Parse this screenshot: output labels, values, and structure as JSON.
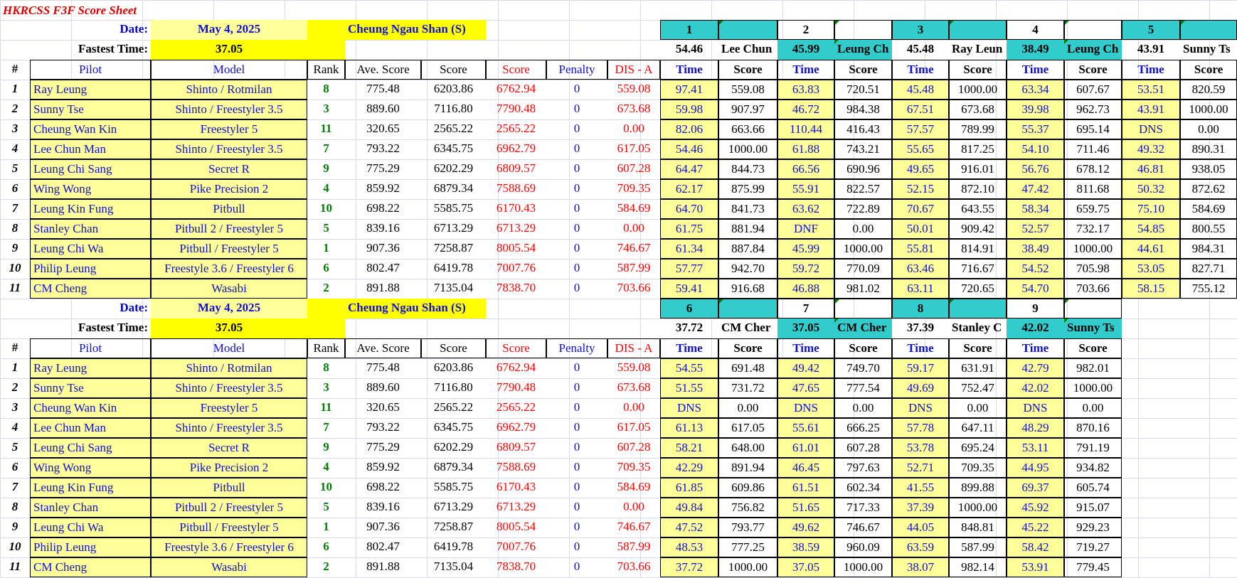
{
  "title": "HKRCSS F3F Score Sheet",
  "blocks": [
    {
      "date_label": "Date:",
      "date": "May 4, 2025",
      "site": "Cheung Ngau Shan (S)",
      "fastest_label": "Fastest Time:",
      "fastest": "37.05",
      "headers": [
        "#",
        "Pilot",
        "Model",
        "Rank",
        "Ave. Score",
        "Score",
        "Score",
        "Penalty",
        "DIS - A"
      ],
      "rounds": [
        {
          "n": "1",
          "best": "54.46",
          "pilot": "Lee Chun"
        },
        {
          "n": "2",
          "best": "45.99",
          "pilot": "Leung Ch"
        },
        {
          "n": "3",
          "best": "45.48",
          "pilot": "Ray Leun"
        },
        {
          "n": "4",
          "best": "38.49",
          "pilot": "Leung Ch"
        },
        {
          "n": "5",
          "best": "43.91",
          "pilot": "Sunny Ts"
        }
      ],
      "time_label": "Time",
      "score_label": "Score",
      "rows": [
        {
          "num": "1",
          "pilot": "Ray Leung",
          "model": "Shinto / Rotmilan",
          "rank": "8",
          "ave": "775.48",
          "score": "6203.86",
          "score2": "6762.94",
          "pen": "0",
          "dis": "559.08",
          "r": [
            [
              "97.41",
              "559.08"
            ],
            [
              "63.83",
              "720.51"
            ],
            [
              "45.48",
              "1000.00"
            ],
            [
              "63.34",
              "607.67"
            ],
            [
              "53.51",
              "820.59"
            ]
          ]
        },
        {
          "num": "2",
          "pilot": "Sunny Tse",
          "model": "Shinto / Freestyler 3.5",
          "rank": "3",
          "ave": "889.60",
          "score": "7116.80",
          "score2": "7790.48",
          "pen": "0",
          "dis": "673.68",
          "r": [
            [
              "59.98",
              "907.97"
            ],
            [
              "46.72",
              "984.38"
            ],
            [
              "67.51",
              "673.68"
            ],
            [
              "39.98",
              "962.73"
            ],
            [
              "43.91",
              "1000.00"
            ]
          ]
        },
        {
          "num": "3",
          "pilot": "Cheung Wan Kin",
          "model": "Freestyler 5",
          "rank": "11",
          "ave": "320.65",
          "score": "2565.22",
          "score2": "2565.22",
          "pen": "0",
          "dis": "0.00",
          "r": [
            [
              "82.06",
              "663.66"
            ],
            [
              "110.44",
              "416.43"
            ],
            [
              "57.57",
              "789.99"
            ],
            [
              "55.37",
              "695.14"
            ],
            [
              "DNS",
              "0.00"
            ]
          ]
        },
        {
          "num": "4",
          "pilot": "Lee Chun Man",
          "model": "Shinto / Freestyler 3.5",
          "rank": "7",
          "ave": "793.22",
          "score": "6345.75",
          "score2": "6962.79",
          "pen": "0",
          "dis": "617.05",
          "r": [
            [
              "54.46",
              "1000.00"
            ],
            [
              "61.88",
              "743.21"
            ],
            [
              "55.65",
              "817.25"
            ],
            [
              "54.10",
              "711.46"
            ],
            [
              "49.32",
              "890.31"
            ]
          ]
        },
        {
          "num": "5",
          "pilot": "Leung Chi Sang",
          "model": "Secret R",
          "rank": "9",
          "ave": "775.29",
          "score": "6202.29",
          "score2": "6809.57",
          "pen": "0",
          "dis": "607.28",
          "r": [
            [
              "64.47",
              "844.73"
            ],
            [
              "66.56",
              "690.96"
            ],
            [
              "49.65",
              "916.01"
            ],
            [
              "56.76",
              "678.12"
            ],
            [
              "46.81",
              "938.05"
            ]
          ]
        },
        {
          "num": "6",
          "pilot": "Wing Wong",
          "model": "Pike Precision 2",
          "rank": "4",
          "ave": "859.92",
          "score": "6879.34",
          "score2": "7588.69",
          "pen": "0",
          "dis": "709.35",
          "r": [
            [
              "62.17",
              "875.99"
            ],
            [
              "55.91",
              "822.57"
            ],
            [
              "52.15",
              "872.10"
            ],
            [
              "47.42",
              "811.68"
            ],
            [
              "50.32",
              "872.62"
            ]
          ]
        },
        {
          "num": "7",
          "pilot": "Leung Kin Fung",
          "model": "Pitbull",
          "rank": "10",
          "ave": "698.22",
          "score": "5585.75",
          "score2": "6170.43",
          "pen": "0",
          "dis": "584.69",
          "r": [
            [
              "64.70",
              "841.73"
            ],
            [
              "63.62",
              "722.89"
            ],
            [
              "70.67",
              "643.55"
            ],
            [
              "58.34",
              "659.75"
            ],
            [
              "75.10",
              "584.69"
            ]
          ]
        },
        {
          "num": "8",
          "pilot": "Stanley Chan",
          "model": "Pitbull 2 / Freestyler 5",
          "rank": "5",
          "ave": "839.16",
          "score": "6713.29",
          "score2": "6713.29",
          "pen": "0",
          "dis": "0.00",
          "r": [
            [
              "61.75",
              "881.94"
            ],
            [
              "DNF",
              "0.00"
            ],
            [
              "50.01",
              "909.42"
            ],
            [
              "52.57",
              "732.17"
            ],
            [
              "54.85",
              "800.55"
            ]
          ]
        },
        {
          "num": "9",
          "pilot": "Leung Chi Wa",
          "model": "Pitbull / Freestyler 5",
          "rank": "1",
          "ave": "907.36",
          "score": "7258.87",
          "score2": "8005.54",
          "pen": "0",
          "dis": "746.67",
          "r": [
            [
              "61.34",
              "887.84"
            ],
            [
              "45.99",
              "1000.00"
            ],
            [
              "55.81",
              "814.91"
            ],
            [
              "38.49",
              "1000.00"
            ],
            [
              "44.61",
              "984.31"
            ]
          ]
        },
        {
          "num": "10",
          "pilot": "Philip Leung",
          "model": "Freestyle 3.6 / Freestyler 6",
          "rank": "6",
          "ave": "802.47",
          "score": "6419.78",
          "score2": "7007.76",
          "pen": "0",
          "dis": "587.99",
          "r": [
            [
              "57.77",
              "942.70"
            ],
            [
              "59.72",
              "770.09"
            ],
            [
              "63.46",
              "716.67"
            ],
            [
              "54.52",
              "705.98"
            ],
            [
              "53.05",
              "827.71"
            ]
          ]
        },
        {
          "num": "11",
          "pilot": "CM Cheng",
          "model": "Wasabi",
          "rank": "2",
          "ave": "891.88",
          "score": "7135.04",
          "score2": "7838.70",
          "pen": "0",
          "dis": "703.66",
          "r": [
            [
              "59.41",
              "916.68"
            ],
            [
              "46.88",
              "981.02"
            ],
            [
              "63.11",
              "720.65"
            ],
            [
              "54.70",
              "703.66"
            ],
            [
              "58.15",
              "755.12"
            ]
          ]
        }
      ]
    },
    {
      "date_label": "Date:",
      "date": "May 4, 2025",
      "site": "Cheung Ngau Shan (S)",
      "fastest_label": "Fastest Time:",
      "fastest": "37.05",
      "headers": [
        "#",
        "Pilot",
        "Model",
        "Rank",
        "Ave. Score",
        "Score",
        "Score",
        "Penalty",
        "DIS - A"
      ],
      "rounds": [
        {
          "n": "6",
          "best": "37.72",
          "pilot": "CM Cher"
        },
        {
          "n": "7",
          "best": "37.05",
          "pilot": "CM Cher"
        },
        {
          "n": "8",
          "best": "37.39",
          "pilot": "Stanley C"
        },
        {
          "n": "9",
          "best": "42.02",
          "pilot": "Sunny Ts"
        }
      ],
      "time_label": "Time",
      "score_label": "Score",
      "rows": [
        {
          "num": "1",
          "pilot": "Ray Leung",
          "model": "Shinto / Rotmilan",
          "rank": "8",
          "ave": "775.48",
          "score": "6203.86",
          "score2": "6762.94",
          "pen": "0",
          "dis": "559.08",
          "r": [
            [
              "54.55",
              "691.48"
            ],
            [
              "49.42",
              "749.70"
            ],
            [
              "59.17",
              "631.91"
            ],
            [
              "42.79",
              "982.01"
            ]
          ]
        },
        {
          "num": "2",
          "pilot": "Sunny Tse",
          "model": "Shinto / Freestyler 3.5",
          "rank": "3",
          "ave": "889.60",
          "score": "7116.80",
          "score2": "7790.48",
          "pen": "0",
          "dis": "673.68",
          "r": [
            [
              "51.55",
              "731.72"
            ],
            [
              "47.65",
              "777.54"
            ],
            [
              "49.69",
              "752.47"
            ],
            [
              "42.02",
              "1000.00"
            ]
          ]
        },
        {
          "num": "3",
          "pilot": "Cheung Wan Kin",
          "model": "Freestyler 5",
          "rank": "11",
          "ave": "320.65",
          "score": "2565.22",
          "score2": "2565.22",
          "pen": "0",
          "dis": "0.00",
          "r": [
            [
              "DNS",
              "0.00"
            ],
            [
              "DNS",
              "0.00"
            ],
            [
              "DNS",
              "0.00"
            ],
            [
              "DNS",
              "0.00"
            ]
          ]
        },
        {
          "num": "4",
          "pilot": "Lee Chun Man",
          "model": "Shinto / Freestyler 3.5",
          "rank": "7",
          "ave": "793.22",
          "score": "6345.75",
          "score2": "6962.79",
          "pen": "0",
          "dis": "617.05",
          "r": [
            [
              "61.13",
              "617.05"
            ],
            [
              "55.61",
              "666.25"
            ],
            [
              "57.78",
              "647.11"
            ],
            [
              "48.29",
              "870.16"
            ]
          ]
        },
        {
          "num": "5",
          "pilot": "Leung Chi Sang",
          "model": "Secret R",
          "rank": "9",
          "ave": "775.29",
          "score": "6202.29",
          "score2": "6809.57",
          "pen": "0",
          "dis": "607.28",
          "r": [
            [
              "58.21",
              "648.00"
            ],
            [
              "61.01",
              "607.28"
            ],
            [
              "53.78",
              "695.24"
            ],
            [
              "53.11",
              "791.19"
            ]
          ]
        },
        {
          "num": "6",
          "pilot": "Wing Wong",
          "model": "Pike Precision 2",
          "rank": "4",
          "ave": "859.92",
          "score": "6879.34",
          "score2": "7588.69",
          "pen": "0",
          "dis": "709.35",
          "r": [
            [
              "42.29",
              "891.94"
            ],
            [
              "46.45",
              "797.63"
            ],
            [
              "52.71",
              "709.35"
            ],
            [
              "44.95",
              "934.82"
            ]
          ]
        },
        {
          "num": "7",
          "pilot": "Leung Kin Fung",
          "model": "Pitbull",
          "rank": "10",
          "ave": "698.22",
          "score": "5585.75",
          "score2": "6170.43",
          "pen": "0",
          "dis": "584.69",
          "r": [
            [
              "61.85",
              "609.86"
            ],
            [
              "61.51",
              "602.34"
            ],
            [
              "41.55",
              "899.88"
            ],
            [
              "69.37",
              "605.74"
            ]
          ]
        },
        {
          "num": "8",
          "pilot": "Stanley Chan",
          "model": "Pitbull 2 / Freestyler 5",
          "rank": "5",
          "ave": "839.16",
          "score": "6713.29",
          "score2": "6713.29",
          "pen": "0",
          "dis": "0.00",
          "r": [
            [
              "49.84",
              "756.82"
            ],
            [
              "51.65",
              "717.33"
            ],
            [
              "37.39",
              "1000.00"
            ],
            [
              "45.92",
              "915.07"
            ]
          ]
        },
        {
          "num": "9",
          "pilot": "Leung Chi Wa",
          "model": "Pitbull / Freestyler 5",
          "rank": "1",
          "ave": "907.36",
          "score": "7258.87",
          "score2": "8005.54",
          "pen": "0",
          "dis": "746.67",
          "r": [
            [
              "47.52",
              "793.77"
            ],
            [
              "49.62",
              "746.67"
            ],
            [
              "44.05",
              "848.81"
            ],
            [
              "45.22",
              "929.23"
            ]
          ]
        },
        {
          "num": "10",
          "pilot": "Philip Leung",
          "model": "Freestyle 3.6 / Freestyler 6",
          "rank": "6",
          "ave": "802.47",
          "score": "6419.78",
          "score2": "7007.76",
          "pen": "0",
          "dis": "587.99",
          "r": [
            [
              "48.53",
              "777.25"
            ],
            [
              "38.59",
              "960.09"
            ],
            [
              "63.59",
              "587.99"
            ],
            [
              "58.42",
              "719.27"
            ]
          ]
        },
        {
          "num": "11",
          "pilot": "CM Cheng",
          "model": "Wasabi",
          "rank": "2",
          "ave": "891.88",
          "score": "7135.04",
          "score2": "7838.70",
          "pen": "0",
          "dis": "703.66",
          "r": [
            [
              "37.72",
              "1000.00"
            ],
            [
              "37.05",
              "1000.00"
            ],
            [
              "38.07",
              "982.14"
            ],
            [
              "53.91",
              "779.45"
            ]
          ]
        }
      ]
    }
  ]
}
